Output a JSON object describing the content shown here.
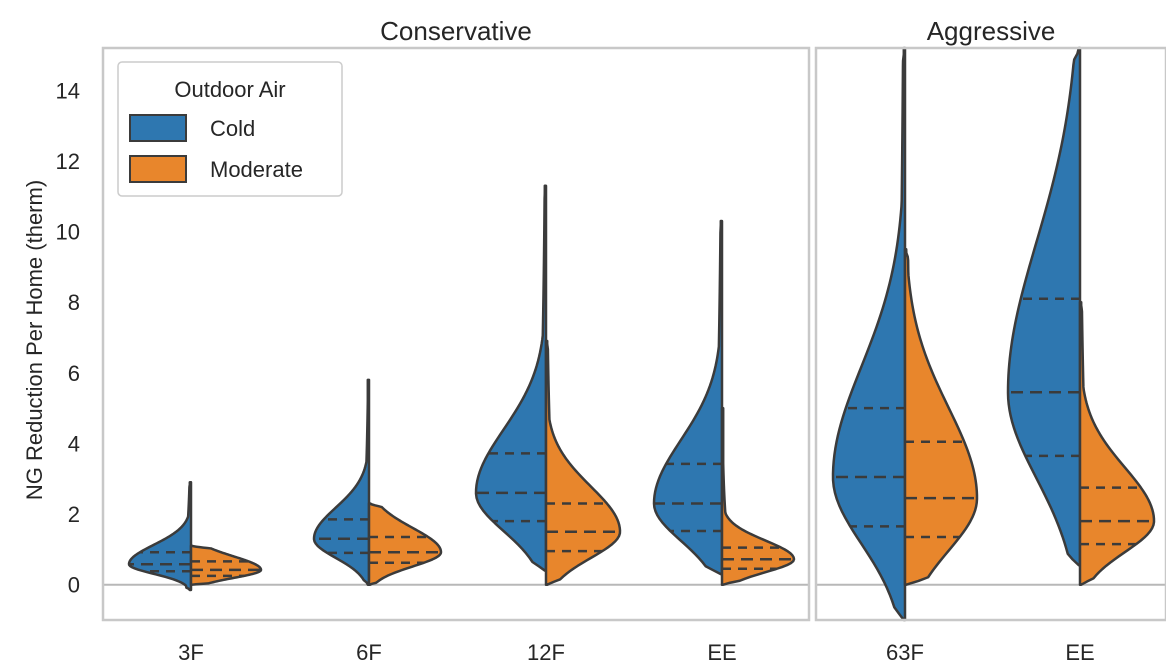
{
  "chart_data": {
    "type": "violin",
    "split_by": "Outdoor Air",
    "ylabel": "NG Reduction Per Home (therm)",
    "xlabel": "",
    "ylim": [
      -1,
      15.2
    ],
    "yticks": [
      0,
      2,
      4,
      6,
      8,
      10,
      12,
      14
    ],
    "grid": false,
    "legend": {
      "title": "Outdoor Air",
      "position": "top-left",
      "entries": [
        {
          "name": "Cold",
          "color": "#2e77b0"
        },
        {
          "name": "Moderate",
          "color": "#e8862c"
        }
      ]
    },
    "colors": {
      "Cold": "#2e77b0",
      "Moderate": "#e8862c",
      "outline": "#3b3b3b",
      "zero_line": "#b8b8b8",
      "frame": "#c8c8c8"
    },
    "panels": [
      {
        "title": "Conservative",
        "categories": [
          {
            "label": "3F",
            "Cold": {
              "min": -0.15,
              "max": 2.9,
              "quartiles": [
                0.38,
                0.58,
                0.92
              ],
              "max_density_halfwidth": 62
            },
            "Moderate": {
              "min": 0.0,
              "max": 1.1,
              "quartiles": [
                0.25,
                0.42,
                0.66
              ],
              "max_density_halfwidth": 70
            }
          },
          {
            "label": "6F",
            "Cold": {
              "min": 0.0,
              "max": 5.8,
              "quartiles": [
                0.9,
                1.3,
                1.85
              ],
              "max_density_halfwidth": 55
            },
            "Moderate": {
              "min": 0.0,
              "max": 2.3,
              "quartiles": [
                0.62,
                0.92,
                1.35
              ],
              "max_density_halfwidth": 72
            }
          },
          {
            "label": "12F",
            "Cold": {
              "min": 0.4,
              "max": 11.3,
              "quartiles": [
                1.8,
                2.6,
                3.72
              ],
              "max_density_halfwidth": 70
            },
            "Moderate": {
              "min": 0.0,
              "max": 6.9,
              "quartiles": [
                0.95,
                1.5,
                2.3
              ],
              "max_density_halfwidth": 74
            }
          },
          {
            "label": "EE",
            "Cold": {
              "min": 0.3,
              "max": 10.3,
              "quartiles": [
                1.52,
                2.3,
                3.42
              ],
              "max_density_halfwidth": 68
            },
            "Moderate": {
              "min": 0.0,
              "max": 5.0,
              "quartiles": [
                0.45,
                0.72,
                1.05
              ],
              "max_density_halfwidth": 72
            }
          }
        ]
      },
      {
        "title": "Aggressive",
        "categories": [
          {
            "label": "63F",
            "Cold": {
              "min": -1.0,
              "max": 15.2,
              "quartiles": [
                1.65,
                3.05,
                5.0
              ],
              "max_density_halfwidth": 72
            },
            "Moderate": {
              "min": 0.0,
              "max": 9.5,
              "quartiles": [
                1.35,
                2.45,
                4.05
              ],
              "max_density_halfwidth": 72
            }
          },
          {
            "label": "EE",
            "Cold": {
              "min": 0.55,
              "max": 15.2,
              "quartiles": [
                3.65,
                5.45,
                8.1
              ],
              "max_density_halfwidth": 72
            },
            "Moderate": {
              "min": 0.0,
              "max": 8.0,
              "quartiles": [
                1.15,
                1.8,
                2.75
              ],
              "max_density_halfwidth": 74
            }
          }
        ]
      }
    ]
  }
}
